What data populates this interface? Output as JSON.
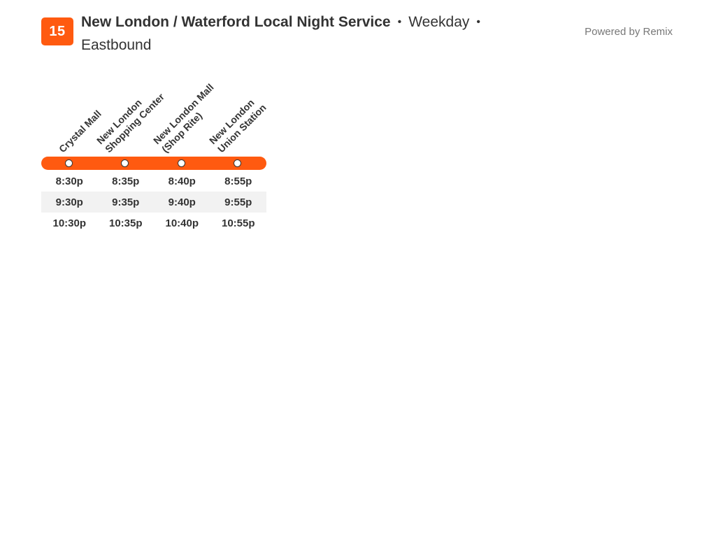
{
  "route": {
    "number": "15",
    "name": "New London / Waterford Local Night Service",
    "separator": "•",
    "day": "Weekday",
    "direction": "Eastbound",
    "color": "#ff5a10"
  },
  "powered_by": "Powered by Remix",
  "stops": [
    {
      "lines": [
        "Crystal Mall"
      ]
    },
    {
      "lines": [
        "New London",
        "Shopping Center"
      ]
    },
    {
      "lines": [
        "New London Mall",
        "(Shop Rite)"
      ]
    },
    {
      "lines": [
        "New London",
        "Union Station"
      ]
    }
  ],
  "trips": [
    [
      "8:30p",
      "8:35p",
      "8:40p",
      "8:55p"
    ],
    [
      "9:30p",
      "9:35p",
      "9:40p",
      "9:55p"
    ],
    [
      "10:30p",
      "10:35p",
      "10:40p",
      "10:55p"
    ]
  ]
}
